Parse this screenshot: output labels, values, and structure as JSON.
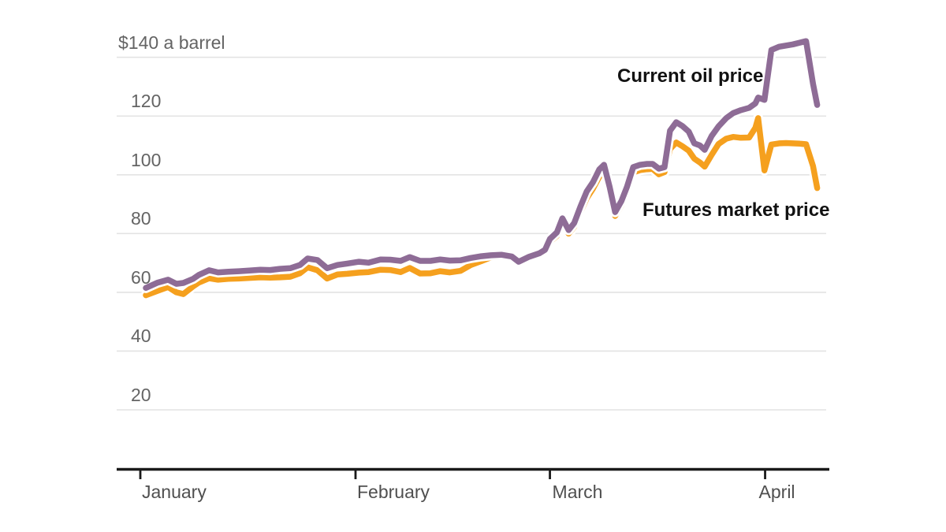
{
  "chart_data": {
    "type": "line",
    "title": "",
    "unit_note": "$140 a barrel",
    "xlabel": "",
    "ylabel": "dollars per barrel",
    "ylim": [
      14,
      148
    ],
    "grid": "horizontal",
    "legend_position": "inline-annotations",
    "y_ticks": [
      {
        "value": 140,
        "label": "$140 a barrel"
      },
      {
        "value": 120,
        "label": "120"
      },
      {
        "value": 100,
        "label": "100"
      },
      {
        "value": 80,
        "label": "80"
      },
      {
        "value": 60,
        "label": "60"
      },
      {
        "value": 40,
        "label": "40"
      },
      {
        "value": 20,
        "label": "20"
      }
    ],
    "x_ticks": [
      {
        "day": 1,
        "label": "January"
      },
      {
        "day": 32,
        "label": "February"
      },
      {
        "day": 60,
        "label": "March"
      },
      {
        "day": 91,
        "label": "April"
      }
    ],
    "x_unit": "day-of-year",
    "days": [
      1.8,
      3.5,
      5.0,
      6.2,
      7.2,
      8.6,
      9.4,
      10.9,
      12.2,
      13.7,
      15.2,
      16.7,
      18.3,
      19.7,
      21.1,
      22.6,
      24.0,
      25.1,
      26.5,
      27.9,
      29.4,
      30.8,
      32.5,
      33.9,
      35.6,
      37.0,
      38.5,
      39.8,
      41.3,
      42.8,
      44.2,
      45.6,
      47.1,
      48.6,
      50.1,
      51.5,
      53.0,
      54.5,
      55.5,
      57.0,
      58.5,
      59.3,
      60.0,
      61.0,
      61.8,
      62.7,
      63.5,
      64.4,
      65.3,
      66.2,
      67.1,
      67.8,
      68.6,
      69.4,
      70.3,
      71.1,
      72.0,
      73.0,
      74.0,
      74.8,
      75.7,
      76.5,
      77.3,
      78.2,
      79.1,
      80.0,
      80.8,
      81.6,
      82.3,
      83.3,
      84.3,
      85.4,
      86.4,
      87.5,
      88.7,
      89.6,
      90.0,
      90.9,
      91.9,
      93.0,
      94.0,
      95.0,
      96.0,
      96.9,
      97.9,
      98.5
    ],
    "series": [
      {
        "name": "Current oil price",
        "color": "#8e6c96",
        "values": [
          61.5,
          63.3,
          64.3,
          62.9,
          63.2,
          64.6,
          65.9,
          67.5,
          66.8,
          67.0,
          67.2,
          67.4,
          67.7,
          67.6,
          68.0,
          68.2,
          69.3,
          71.5,
          71.0,
          68.2,
          69.3,
          69.8,
          70.4,
          70.1,
          71.2,
          71.1,
          70.7,
          72.0,
          70.7,
          70.7,
          71.2,
          70.8,
          70.9,
          71.7,
          72.3,
          72.6,
          72.8,
          72.2,
          70.4,
          72.1,
          73.3,
          74.5,
          78.2,
          80.4,
          85.2,
          81.2,
          83.6,
          89.2,
          94.3,
          97.5,
          101.8,
          103.4,
          95.9,
          87.3,
          91.1,
          95.9,
          102.6,
          103.4,
          103.7,
          103.7,
          102.1,
          102.6,
          115.0,
          117.9,
          116.6,
          114.7,
          110.7,
          110.0,
          108.5,
          113.2,
          116.5,
          119.3,
          121.0,
          122.0,
          122.8,
          124.3,
          126.3,
          125.5,
          142.5,
          143.6,
          144.0,
          144.4,
          145.0,
          145.5,
          131.0,
          123.8
        ]
      },
      {
        "name": "Futures market price",
        "color": "#f5a01e",
        "values": [
          59.0,
          60.5,
          61.8,
          60.0,
          59.4,
          62.0,
          63.3,
          64.8,
          64.3,
          64.6,
          64.7,
          64.9,
          65.1,
          65.0,
          65.1,
          65.3,
          66.5,
          68.5,
          67.5,
          64.7,
          66.1,
          66.3,
          66.7,
          66.9,
          67.7,
          67.6,
          66.9,
          68.3,
          66.4,
          66.5,
          67.2,
          66.8,
          67.3,
          69.3,
          70.6,
          71.9,
          72.5,
          71.9,
          70.2,
          72.3,
          73.1,
          74.0,
          77.2,
          79.2,
          83.5,
          80.0,
          82.3,
          87.3,
          92.0,
          95.3,
          99.3,
          101.4,
          94.3,
          86.0,
          89.6,
          94.3,
          100.8,
          101.6,
          101.9,
          102.0,
          100.2,
          100.9,
          108.8,
          111.0,
          109.7,
          108.2,
          105.5,
          104.2,
          102.8,
          106.8,
          110.5,
          112.3,
          112.9,
          112.6,
          112.7,
          116.0,
          119.3,
          101.5,
          110.3,
          110.7,
          110.8,
          110.7,
          110.6,
          110.4,
          103.0,
          95.5
        ]
      }
    ],
    "annotations": [
      {
        "text": "Current oil price"
      },
      {
        "text": "Futures market price"
      }
    ]
  },
  "colors": {
    "current_line": "#8e6c96",
    "futures_line": "#f5a01e",
    "line_casing": "#ffffff",
    "gridline": "#e3e3e3",
    "axis": "#1a1a1a",
    "y_label": "#646464",
    "x_label": "#4f4f4f",
    "annotation": "#121212",
    "background": "#ffffff"
  }
}
